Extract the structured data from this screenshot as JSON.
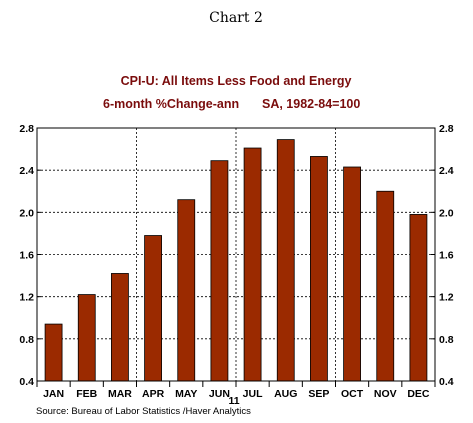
{
  "figure_caption": "Chart 2",
  "chart_data": {
    "type": "bar",
    "title": "CPI-U: All Items Less Food and Energy",
    "subtitle_left": "6-month %Change-ann",
    "subtitle_right": "SA, 1982-84=100",
    "categories": [
      "JAN",
      "FEB",
      "MAR",
      "APR",
      "MAY",
      "JUN",
      "JUL",
      "AUG",
      "SEP",
      "OCT",
      "NOV",
      "DEC"
    ],
    "values": [
      0.94,
      1.22,
      1.42,
      1.78,
      2.12,
      2.49,
      2.61,
      2.69,
      2.53,
      2.43,
      2.2,
      1.98
    ],
    "year_label": "11",
    "ylim": [
      0.4,
      2.8
    ],
    "yticks": [
      "0.4",
      "0.8",
      "1.2",
      "1.6",
      "2.0",
      "2.4",
      "2.8"
    ],
    "bar_color": "#9b2a00",
    "title_color": "#7a0c0c",
    "grid": true,
    "source": "Source:  Bureau of Labor Statistics /Haver Analytics"
  }
}
